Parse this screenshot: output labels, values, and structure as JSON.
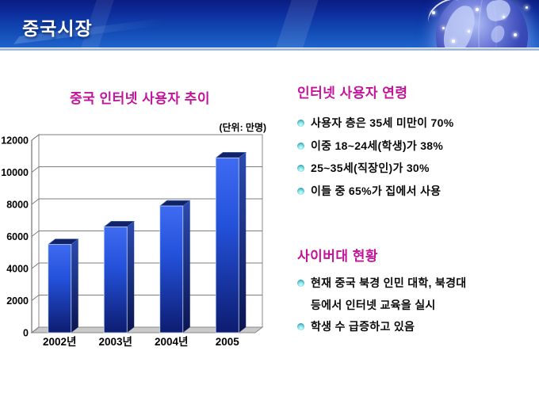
{
  "header": {
    "title": "중국시장"
  },
  "left_panel": {
    "chart_title": "중국 인터넷 사용자 추이",
    "unit_label": "(단위: 만명)"
  },
  "chart_data": {
    "type": "bar",
    "style": "3d-column",
    "title": "중국 인터넷 사용자 추이",
    "unit": "만명",
    "categories": [
      "2002년",
      "2003년",
      "2004년",
      "2005"
    ],
    "values": [
      5500,
      6600,
      7900,
      10900
    ],
    "y_ticks": [
      0,
      2000,
      4000,
      6000,
      8000,
      10000,
      12000
    ],
    "ylim": [
      0,
      12000
    ],
    "xlabel": "",
    "ylabel": "",
    "grid": true,
    "legend": "none",
    "bar_color_top": "#3e6bf2",
    "bar_color_bottom": "#0d1c70"
  },
  "right_panel": {
    "sections": [
      {
        "heading": "인터넷 사용자 연령",
        "items": [
          {
            "lines": [
              "사용자 층은 35세 미만이 70%"
            ]
          },
          {
            "lines": [
              "이중 18~24세(학생)가 38%"
            ]
          },
          {
            "lines": [
              "25~35세(직장인)가 30%"
            ]
          },
          {
            "lines": [
              "이들 중 65%가 집에서 사용"
            ]
          }
        ]
      },
      {
        "heading": "사이버대 현황",
        "items": [
          {
            "lines": [
              "현재  중국 북경 인민 대학, 북경대",
              "등에서 인터넷 교육을 실시"
            ]
          },
          {
            "lines": [
              "학생 수 급증하고 있음"
            ]
          }
        ]
      }
    ]
  },
  "colors": {
    "accent_magenta": "#c4139b",
    "header_blue_dark": "#0a1c82",
    "header_blue_light": "#1f63cc",
    "bullet_cyan": "#7fe3e4",
    "chart_floor_gray": "#c9c9c9"
  }
}
